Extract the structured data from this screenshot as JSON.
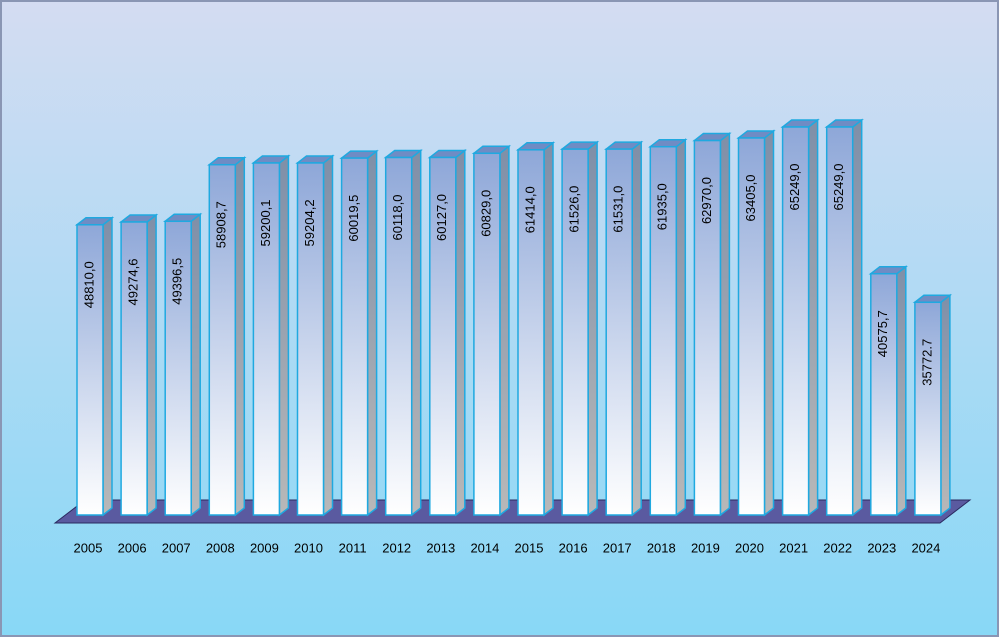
{
  "chart_data": {
    "type": "bar3d",
    "categories": [
      "2005",
      "2006",
      "2007",
      "2008",
      "2009",
      "2010",
      "2011",
      "2012",
      "2013",
      "2014",
      "2015",
      "2016",
      "2017",
      "2018",
      "2019",
      "2020",
      "2021",
      "2022",
      "2023",
      "2024"
    ],
    "values": [
      48810.0,
      49274.6,
      49396.5,
      58908.7,
      59200.1,
      59204.2,
      60019.5,
      60118.0,
      60127.0,
      60829.0,
      61414.0,
      61526.0,
      61531.0,
      61935.0,
      62970.0,
      63405.0,
      65249.0,
      65249.0,
      40575.7,
      35772.7
    ],
    "value_labels": [
      "48810,0",
      "49274,6",
      "49396,5",
      "58908,7",
      "59200,1",
      "59204,2",
      "60019,5",
      "60118,0",
      "60127,0",
      "60829,0",
      "61414,0",
      "61526,0",
      "61531,0",
      "61935,0",
      "62970,0",
      "63405,0",
      "65249,0",
      "65249,0",
      "40575,7",
      "35772.7"
    ],
    "color": "#1fa9e0"
  }
}
